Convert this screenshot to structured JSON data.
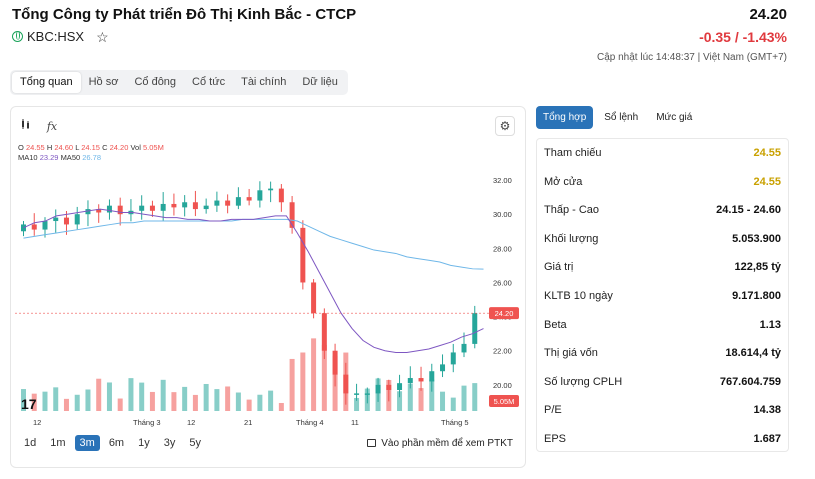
{
  "header": {
    "company_name": "Tổng Công ty Phát triển Đô Thị Kinh Bắc - CTCP",
    "price": "24.20",
    "ticker": "KBC:HSX",
    "change": "-0.35 / -1.43%",
    "updated": "Cập nhật lúc 14:48:37 | Việt Nam (GMT+7)"
  },
  "tabs": [
    "Tổng quan",
    "Hồ sơ",
    "Cổ đông",
    "Cổ tức",
    "Tài chính",
    "Dữ liệu"
  ],
  "chart": {
    "toolbar_fx": "fx",
    "legend_ohlc": {
      "o_label": "O",
      "o": "24.55",
      "h_label": "H",
      "h": "24.60",
      "l_label": "L",
      "l": "24.15",
      "c_label": "C",
      "c": "24.20",
      "vol_label": "Vol",
      "vol": "5.05M"
    },
    "legend_ma": {
      "ma10_label": "MA10",
      "ma10": "23.29",
      "ma50_label": "MA50",
      "ma50": "26.78"
    },
    "price_badge": "24.20",
    "volume_badge": "5.05M",
    "y_ticks": [
      "32.00",
      "30.00",
      "28.00",
      "26.00",
      "24.00",
      "22.00",
      "20.00"
    ],
    "x_ticks": [
      "12",
      "Tháng 3",
      "12",
      "21",
      "Tháng 4",
      "11",
      "Tháng 5"
    ],
    "ranges": [
      "1d",
      "1m",
      "3m",
      "6m",
      "1y",
      "3y",
      "5y"
    ],
    "active_range": "3m",
    "ptkt_link": "Vào phần mềm để xem PTKT"
  },
  "chart_data": {
    "type": "candlestick",
    "ylim": [
      18,
      33
    ],
    "ma10": [
      29.2,
      29.5,
      29.6,
      29.9,
      30.0,
      30.1,
      30.2,
      30.3,
      30.2,
      30.1,
      30.1,
      30.0,
      29.9,
      29.8,
      29.8,
      29.7,
      29.7,
      29.6,
      29.6,
      29.7,
      29.7,
      29.7,
      29.8,
      29.9,
      29.9,
      28.9,
      27.8,
      26.6,
      25.4,
      24.2,
      23.3,
      22.6,
      22.2,
      22.0,
      21.9,
      21.9,
      22.0,
      22.1,
      22.3,
      22.5,
      22.8,
      23.0,
      23.3
    ],
    "ma50": [
      28.6,
      28.7,
      28.8,
      28.9,
      29.0,
      29.1,
      29.2,
      29.3,
      29.4,
      29.5,
      29.5,
      29.6,
      29.6,
      29.6,
      29.6,
      29.6,
      29.6,
      29.6,
      29.6,
      29.6,
      29.7,
      29.7,
      29.7,
      29.7,
      29.7,
      29.6,
      29.3,
      29.0,
      28.7,
      28.5,
      28.3,
      28.1,
      27.9,
      27.8,
      27.7,
      27.5,
      27.4,
      27.3,
      27.2,
      27.0,
      26.9,
      26.8,
      26.78
    ],
    "last_close": 24.2,
    "last_volume": "5.05M"
  },
  "tabs_right": [
    "Tổng hợp",
    "Sổ lệnh",
    "Mức giá"
  ],
  "stats": [
    {
      "label": "Tham chiếu",
      "value": "24.55",
      "color": "gold"
    },
    {
      "label": "Mở cửa",
      "value": "24.55",
      "color": "gold"
    },
    {
      "label": "Thấp - Cao",
      "low": "24.15",
      "sep": " - ",
      "high": "24.60"
    },
    {
      "label": "Khối lượng",
      "value": "5.053.900"
    },
    {
      "label": "Giá trị",
      "value": "122,85 tỷ"
    },
    {
      "label": "KLTB 10 ngày",
      "value": "9.171.800"
    },
    {
      "label": "Beta",
      "value": "1.13"
    },
    {
      "label": "Thị giá vốn",
      "value": "18.614,4 tỷ"
    },
    {
      "label": "Số lượng CPLH",
      "value": "767.604.759"
    },
    {
      "label": "P/E",
      "value": "14.38"
    },
    {
      "label": "EPS",
      "value": "1.687"
    }
  ],
  "colors": {
    "up": "#26a69a",
    "down": "#ef5350",
    "accent": "#2a73b8",
    "ma10": "#7e57c2",
    "ma50": "#6fb7e8"
  }
}
